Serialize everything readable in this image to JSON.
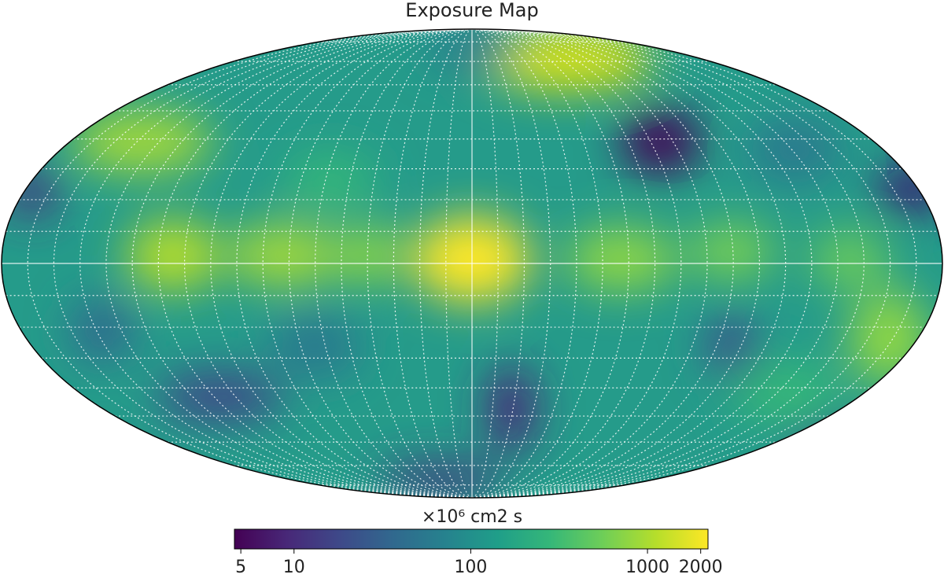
{
  "chart_data": {
    "type": "mollweide-map",
    "title": "Exposure Map",
    "colorbar": {
      "label": "×10⁶ cm2 s",
      "colormap": "viridis",
      "log": true,
      "lim": [
        4.6,
        2200
      ],
      "ticks": [
        5,
        10,
        100,
        1000,
        2000
      ]
    },
    "graticule": true
  }
}
